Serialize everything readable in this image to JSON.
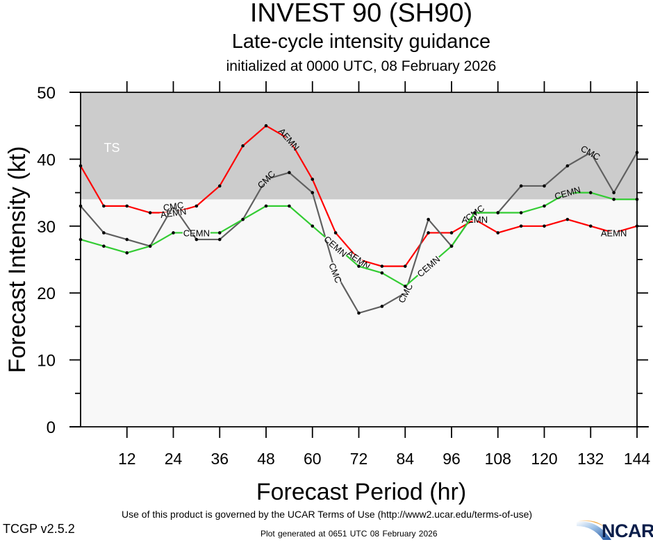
{
  "header": {
    "title": "INVEST 90 (SH90)",
    "subtitle": "Late-cycle intensity guidance",
    "init_line": "initialized at 0000 UTC, 08 February 2026"
  },
  "footer": {
    "terms": "Use of this product is governed by the UCAR Terms of Use (http://www2.ucar.edu/terms-of-use)",
    "version": "TCGP v2.5.2",
    "generated": "Plot generated at 0651 UTC   08 February 2026",
    "logo_text": "NCAR"
  },
  "chart_data": {
    "type": "line",
    "title": "INVEST 90 (SH90)",
    "xlabel": "Forecast Period (hr)",
    "ylabel": "Forecast Intensity (kt)",
    "xlim": [
      0,
      144
    ],
    "ylim": [
      0,
      50
    ],
    "xticks": [
      12,
      24,
      36,
      48,
      60,
      72,
      84,
      96,
      108,
      120,
      132,
      144
    ],
    "yticks": [
      0,
      10,
      20,
      30,
      40,
      50
    ],
    "yminor_ticks": [
      5,
      15,
      25,
      35,
      45
    ],
    "grid": false,
    "bands": [
      {
        "label": "TS",
        "from": 34,
        "to": 50,
        "color": "#cccccc"
      }
    ],
    "background_color": "#f8f8f8",
    "x": [
      0,
      6,
      12,
      18,
      24,
      30,
      36,
      42,
      48,
      54,
      60,
      66,
      72,
      78,
      84,
      90,
      96,
      102,
      108,
      114,
      120,
      126,
      132,
      138,
      144
    ],
    "series": [
      {
        "name": "AEMN",
        "color": "#ff0000",
        "values": [
          39,
          33,
          33,
          32,
          32,
          33,
          36,
          42,
          45,
          43,
          37,
          29,
          25,
          24,
          24,
          29,
          29,
          31,
          29,
          30,
          30,
          31,
          30,
          29,
          30
        ],
        "label_at_hours": [
          24,
          54,
          72,
          102,
          138
        ]
      },
      {
        "name": "CMC",
        "color": "#606060",
        "values": [
          33,
          29,
          28,
          27,
          33,
          28,
          28,
          31,
          37,
          38,
          35,
          23,
          17,
          18,
          20,
          31,
          27,
          32,
          32,
          36,
          36,
          39,
          41,
          35,
          41
        ],
        "label_at_hours": [
          24,
          48,
          66,
          84,
          102,
          132
        ]
      },
      {
        "name": "CEMN",
        "color": "#33cc33",
        "values": [
          28,
          27,
          26,
          27,
          29,
          29,
          29,
          31,
          33,
          33,
          30,
          27,
          24,
          23,
          21,
          24,
          27,
          32,
          32,
          32,
          33,
          35,
          35,
          34,
          34
        ],
        "label_at_hours": [
          30,
          66,
          90,
          126
        ]
      }
    ]
  }
}
